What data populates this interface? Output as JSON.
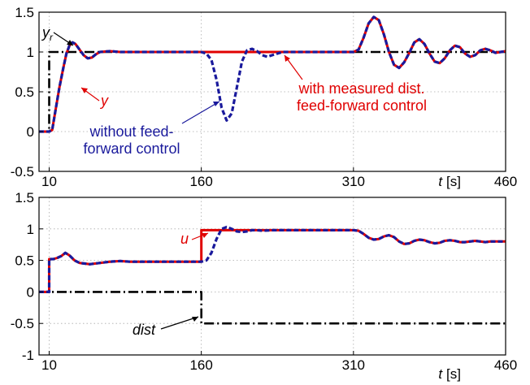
{
  "chart_data": [
    {
      "type": "line",
      "xlim": [
        0,
        460
      ],
      "ylim": [
        -0.5,
        1.5
      ],
      "grid": true,
      "x_ticks": [
        "10",
        "160",
        "310",
        "460"
      ],
      "y_ticks": [
        "-0.5",
        "0",
        "0.5",
        "1",
        "1.5"
      ],
      "xlabel": "[s]",
      "xlabel_var": "t",
      "annotations": [
        {
          "id": "yr",
          "text": "y",
          "subscript": "r",
          "color": "#000000"
        },
        {
          "id": "y",
          "text": "y",
          "color": "#e00000"
        },
        {
          "id": "with_ff",
          "text": [
            "with measured dist.",
            "feed-forward control"
          ],
          "color": "#e00000"
        },
        {
          "id": "without_ff",
          "text": [
            "without feed-",
            "forward control"
          ],
          "color": "#1a1a9c"
        }
      ],
      "series": [
        {
          "id": "reference",
          "color": "#000000",
          "style": "dash-dot",
          "x": [
            0,
            10,
            10,
            460
          ],
          "y": [
            0,
            0,
            1,
            1
          ]
        },
        {
          "id": "with_ff",
          "color": "#e00000",
          "style": "solid",
          "x": [
            0,
            10,
            13,
            16,
            20,
            24,
            27,
            30,
            33,
            36,
            40,
            44,
            48,
            52,
            56,
            60,
            70,
            80,
            90,
            100,
            110,
            120,
            130,
            140,
            150,
            160,
            170,
            180,
            190,
            200,
            210,
            220,
            230,
            240,
            250,
            260,
            270,
            280,
            290,
            300,
            310,
            315,
            320,
            325,
            330,
            335,
            340,
            345,
            350,
            355,
            360,
            365,
            370,
            375,
            380,
            385,
            390,
            395,
            400,
            405,
            410,
            415,
            420,
            425,
            430,
            435,
            440,
            445,
            450,
            455,
            460
          ],
          "y": [
            0,
            0,
            0.02,
            0.25,
            0.55,
            0.8,
            0.98,
            1.08,
            1.12,
            1.1,
            1.03,
            0.96,
            0.92,
            0.93,
            0.97,
            1,
            1.01,
            1,
            1,
            1,
            1,
            1,
            1,
            1,
            1,
            1,
            1,
            1,
            1,
            1,
            1,
            1,
            1,
            1,
            1,
            1,
            1,
            1,
            1,
            1,
            1,
            1.03,
            1.18,
            1.36,
            1.44,
            1.4,
            1.22,
            1,
            0.84,
            0.8,
            0.87,
            0.99,
            1.12,
            1.16,
            1.1,
            0.98,
            0.88,
            0.86,
            0.92,
            1.02,
            1.08,
            1.06,
            0.98,
            0.94,
            0.96,
            1.02,
            1.04,
            1.02,
            0.99,
            1,
            1.01
          ]
        },
        {
          "id": "without_ff",
          "color": "#1a1a9c",
          "style": "dashed",
          "x": [
            0,
            10,
            13,
            16,
            20,
            24,
            27,
            30,
            33,
            36,
            40,
            44,
            48,
            52,
            56,
            60,
            70,
            80,
            90,
            100,
            110,
            120,
            130,
            140,
            150,
            160,
            165,
            170,
            175,
            180,
            185,
            190,
            195,
            200,
            205,
            210,
            215,
            220,
            225,
            230,
            240,
            250,
            260,
            270,
            280,
            290,
            300,
            310,
            315,
            320,
            325,
            330,
            335,
            340,
            345,
            350,
            355,
            360,
            365,
            370,
            375,
            380,
            385,
            390,
            395,
            400,
            405,
            410,
            415,
            420,
            425,
            430,
            435,
            440,
            445,
            450,
            455,
            460
          ],
          "y": [
            0,
            0,
            0.02,
            0.25,
            0.55,
            0.8,
            0.98,
            1.08,
            1.12,
            1.1,
            1.03,
            0.96,
            0.92,
            0.93,
            0.97,
            1,
            1.01,
            1,
            1,
            1,
            1,
            1,
            1,
            1,
            1,
            1,
            0.98,
            0.9,
            0.65,
            0.3,
            0.14,
            0.23,
            0.55,
            0.88,
            1.02,
            1.04,
            1.01,
            0.96,
            0.94,
            0.96,
            1,
            1,
            1,
            1,
            1,
            1,
            1,
            1,
            1.03,
            1.18,
            1.36,
            1.44,
            1.4,
            1.22,
            1,
            0.84,
            0.8,
            0.87,
            0.99,
            1.12,
            1.16,
            1.1,
            0.98,
            0.88,
            0.86,
            0.92,
            1.02,
            1.08,
            1.06,
            0.98,
            0.94,
            0.96,
            1.02,
            1.04,
            1.02,
            0.99,
            1,
            1.01
          ]
        }
      ]
    },
    {
      "type": "line",
      "xlim": [
        0,
        460
      ],
      "ylim": [
        -1,
        1.5
      ],
      "grid": true,
      "x_ticks": [
        "10",
        "160",
        "310",
        "460"
      ],
      "y_ticks": [
        "-1",
        "-0.5",
        "0",
        "0.5",
        "1",
        "1.5"
      ],
      "xlabel": "[s]",
      "xlabel_var": "t",
      "annotations": [
        {
          "id": "u",
          "text": "u",
          "color": "#e00000"
        },
        {
          "id": "dist",
          "text": "dist",
          "color": "#000000"
        }
      ],
      "series": [
        {
          "id": "dist",
          "color": "#000000",
          "style": "dash-dot",
          "x": [
            0,
            160,
            160,
            460
          ],
          "y": [
            0,
            0,
            -0.5,
            -0.5
          ]
        },
        {
          "id": "u_with_ff",
          "color": "#e00000",
          "style": "solid",
          "x": [
            0,
            10,
            10,
            14,
            18,
            22,
            26,
            30,
            35,
            40,
            50,
            60,
            70,
            80,
            90,
            100,
            120,
            140,
            160,
            160,
            200,
            240,
            280,
            310,
            315,
            320,
            325,
            330,
            335,
            340,
            345,
            350,
            355,
            360,
            365,
            370,
            375,
            380,
            385,
            390,
            395,
            400,
            405,
            410,
            415,
            420,
            425,
            430,
            435,
            440,
            445,
            450,
            455,
            460
          ],
          "y": [
            0,
            0,
            0.52,
            0.52,
            0.54,
            0.57,
            0.62,
            0.58,
            0.5,
            0.46,
            0.44,
            0.46,
            0.48,
            0.49,
            0.48,
            0.48,
            0.48,
            0.48,
            0.48,
            0.98,
            0.98,
            0.98,
            0.98,
            0.98,
            0.97,
            0.92,
            0.86,
            0.83,
            0.84,
            0.88,
            0.9,
            0.87,
            0.8,
            0.76,
            0.77,
            0.81,
            0.83,
            0.82,
            0.79,
            0.77,
            0.78,
            0.81,
            0.82,
            0.81,
            0.79,
            0.79,
            0.8,
            0.81,
            0.8,
            0.79,
            0.8,
            0.8,
            0.8,
            0.8
          ]
        },
        {
          "id": "u_without_ff",
          "color": "#1a1a9c",
          "style": "dashed",
          "x": [
            0,
            10,
            10,
            14,
            18,
            22,
            26,
            30,
            35,
            40,
            50,
            60,
            70,
            80,
            90,
            100,
            120,
            140,
            160,
            165,
            170,
            175,
            180,
            185,
            190,
            195,
            200,
            205,
            210,
            215,
            220,
            230,
            240,
            260,
            280,
            310,
            315,
            320,
            325,
            330,
            335,
            340,
            345,
            350,
            355,
            360,
            365,
            370,
            375,
            380,
            385,
            390,
            395,
            400,
            405,
            410,
            415,
            420,
            425,
            430,
            435,
            440,
            445,
            450,
            455,
            460
          ],
          "y": [
            0,
            0,
            0.52,
            0.52,
            0.54,
            0.57,
            0.62,
            0.58,
            0.5,
            0.46,
            0.44,
            0.46,
            0.48,
            0.49,
            0.48,
            0.48,
            0.48,
            0.48,
            0.48,
            0.5,
            0.62,
            0.84,
            1.0,
            1.03,
            1.0,
            0.96,
            0.95,
            0.96,
            0.98,
            0.98,
            0.97,
            0.98,
            0.98,
            0.98,
            0.98,
            0.98,
            0.97,
            0.92,
            0.86,
            0.83,
            0.84,
            0.88,
            0.9,
            0.87,
            0.8,
            0.76,
            0.77,
            0.81,
            0.83,
            0.82,
            0.79,
            0.77,
            0.78,
            0.81,
            0.82,
            0.81,
            0.79,
            0.79,
            0.8,
            0.81,
            0.8,
            0.79,
            0.8,
            0.8,
            0.8,
            0.8
          ]
        }
      ]
    }
  ]
}
